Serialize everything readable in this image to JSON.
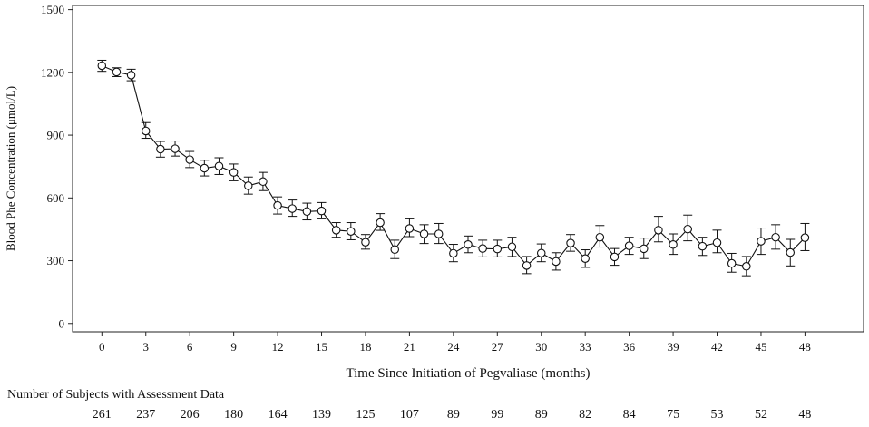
{
  "chart_data": {
    "type": "line",
    "title": "",
    "xlabel": "Time Since Initiation of Pegvaliase (months)",
    "ylabel": "Blood Phe Concentration (μmol/L)",
    "xlim": [
      -2,
      52
    ],
    "ylim": [
      -40,
      1520
    ],
    "xticks": [
      0,
      3,
      6,
      9,
      12,
      15,
      18,
      21,
      24,
      27,
      30,
      33,
      36,
      39,
      42,
      45,
      48
    ],
    "yticks": [
      0,
      300,
      600,
      900,
      1200,
      1500
    ],
    "grid": false,
    "legend": "none",
    "marker": "open-circle",
    "series": [
      {
        "x": [
          0,
          1,
          2,
          3,
          4,
          5,
          6,
          7,
          8,
          9,
          10,
          11,
          12,
          13,
          14,
          15,
          16,
          17,
          18,
          19,
          20,
          21,
          22,
          23,
          24,
          25,
          26,
          27,
          28,
          29,
          30,
          31,
          32,
          33,
          34,
          35,
          36,
          37,
          38,
          39,
          40,
          41,
          42,
          43,
          44,
          45,
          46,
          47,
          48
        ],
        "y": [
          1232,
          1202,
          1187,
          920,
          833,
          835,
          783,
          742,
          752,
          722,
          658,
          678,
          564,
          549,
          535,
          538,
          446,
          440,
          388,
          482,
          353,
          454,
          428,
          428,
          335,
          377,
          358,
          356,
          366,
          277,
          336,
          296,
          384,
          310,
          412,
          318,
          371,
          357,
          446,
          377,
          451,
          369,
          386,
          287,
          273,
          393,
          412,
          339,
          410
        ],
        "lower": [
          1205,
          1180,
          1160,
          885,
          795,
          800,
          745,
          705,
          712,
          682,
          618,
          635,
          523,
          512,
          495,
          500,
          412,
          400,
          355,
          445,
          310,
          415,
          382,
          382,
          295,
          338,
          318,
          318,
          320,
          238,
          295,
          255,
          345,
          268,
          365,
          278,
          330,
          310,
          390,
          330,
          395,
          325,
          338,
          245,
          228,
          330,
          355,
          275,
          348
        ],
        "upper": [
          1258,
          1222,
          1215,
          960,
          870,
          872,
          822,
          780,
          792,
          762,
          700,
          722,
          605,
          590,
          575,
          578,
          482,
          482,
          425,
          525,
          398,
          500,
          472,
          478,
          378,
          418,
          398,
          398,
          412,
          320,
          380,
          338,
          425,
          352,
          468,
          358,
          412,
          408,
          512,
          428,
          518,
          412,
          446,
          335,
          320,
          456,
          472,
          402,
          478
        ]
      }
    ],
    "table": {
      "title": "Number of Subjects with Assessment Data",
      "x": [
        0,
        3,
        6,
        9,
        12,
        15,
        18,
        21,
        24,
        27,
        30,
        33,
        36,
        39,
        42,
        45,
        48
      ],
      "counts": [
        "261",
        "237",
        "206",
        "180",
        "164",
        "139",
        "125",
        "107",
        "89",
        "99",
        "89",
        "82",
        "84",
        "75",
        "53",
        "52",
        "48"
      ]
    }
  }
}
